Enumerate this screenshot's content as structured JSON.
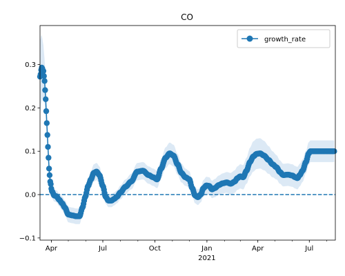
{
  "chart_data": {
    "type": "line",
    "title": "CO",
    "xlabel": "",
    "ylabel": "",
    "x_range": [
      "2020-03-12",
      "2021-08-16"
    ],
    "ylim": [
      -0.105,
      0.39
    ],
    "y_ticks": [
      -0.1,
      0.0,
      0.1,
      0.2,
      0.3
    ],
    "y_tick_labels": [
      "−0.1",
      "0.0",
      "0.1",
      "0.2",
      "0.3"
    ],
    "x_ticks": [
      {
        "date": "2020-04-01",
        "label": "Apr",
        "sub": ""
      },
      {
        "date": "2020-07-01",
        "label": "Jul",
        "sub": ""
      },
      {
        "date": "2020-10-01",
        "label": "Oct",
        "sub": ""
      },
      {
        "date": "2021-01-01",
        "label": "Jan",
        "sub": "2021"
      },
      {
        "date": "2021-04-01",
        "label": "Apr",
        "sub": ""
      },
      {
        "date": "2021-07-01",
        "label": "Jul",
        "sub": ""
      }
    ],
    "reference_line": {
      "y": 0.0,
      "style": "dashed"
    },
    "legend": {
      "position": "top-right"
    },
    "series": [
      {
        "name": "growth_rate",
        "color": "#1f77b4",
        "band_color": "#dce9f5",
        "marker": "circle",
        "points": [
          [
            "2020-03-12",
            0.272,
            0.085
          ],
          [
            "2020-03-15",
            0.293,
            0.075
          ],
          [
            "2020-03-18",
            0.285,
            0.06
          ],
          [
            "2020-03-20",
            0.262,
            0.05
          ],
          [
            "2020-03-22",
            0.22,
            0.04
          ],
          [
            "2020-03-24",
            0.165,
            0.035
          ],
          [
            "2020-03-26",
            0.11,
            0.03
          ],
          [
            "2020-03-28",
            0.06,
            0.025
          ],
          [
            "2020-03-30",
            0.03,
            0.02
          ],
          [
            "2020-04-02",
            0.008,
            0.016
          ],
          [
            "2020-04-06",
            -0.002,
            0.014
          ],
          [
            "2020-04-10",
            -0.004,
            0.014
          ],
          [
            "2020-04-15",
            -0.012,
            0.015
          ],
          [
            "2020-04-20",
            -0.02,
            0.016
          ],
          [
            "2020-04-25",
            -0.03,
            0.017
          ],
          [
            "2020-05-01",
            -0.046,
            0.018
          ],
          [
            "2020-05-08",
            -0.048,
            0.018
          ],
          [
            "2020-05-15",
            -0.05,
            0.018
          ],
          [
            "2020-05-21",
            -0.05,
            0.018
          ],
          [
            "2020-05-26",
            -0.03,
            0.018
          ],
          [
            "2020-05-31",
            -0.005,
            0.018
          ],
          [
            "2020-06-05",
            0.02,
            0.018
          ],
          [
            "2020-06-10",
            0.035,
            0.019
          ],
          [
            "2020-06-15",
            0.05,
            0.02
          ],
          [
            "2020-06-20",
            0.053,
            0.02
          ],
          [
            "2020-06-25",
            0.045,
            0.02
          ],
          [
            "2020-07-01",
            0.02,
            0.018
          ],
          [
            "2020-07-06",
            -0.005,
            0.016
          ],
          [
            "2020-07-11",
            -0.014,
            0.015
          ],
          [
            "2020-07-16",
            -0.014,
            0.015
          ],
          [
            "2020-07-21",
            -0.01,
            0.015
          ],
          [
            "2020-07-26",
            -0.005,
            0.015
          ],
          [
            "2020-08-01",
            0.005,
            0.016
          ],
          [
            "2020-08-10",
            0.018,
            0.017
          ],
          [
            "2020-08-20",
            0.03,
            0.018
          ],
          [
            "2020-08-31",
            0.053,
            0.02
          ],
          [
            "2020-09-10",
            0.055,
            0.02
          ],
          [
            "2020-09-20",
            0.045,
            0.02
          ],
          [
            "2020-09-28",
            0.04,
            0.02
          ],
          [
            "2020-10-05",
            0.035,
            0.02
          ],
          [
            "2020-10-12",
            0.06,
            0.022
          ],
          [
            "2020-10-20",
            0.085,
            0.024
          ],
          [
            "2020-10-27",
            0.095,
            0.025
          ],
          [
            "2020-11-03",
            0.09,
            0.025
          ],
          [
            "2020-11-10",
            0.07,
            0.024
          ],
          [
            "2020-11-17",
            0.05,
            0.022
          ],
          [
            "2020-11-24",
            0.04,
            0.02
          ],
          [
            "2020-12-01",
            0.035,
            0.019
          ],
          [
            "2020-12-06",
            0.015,
            0.018
          ],
          [
            "2020-12-11",
            -0.002,
            0.018
          ],
          [
            "2020-12-16",
            -0.006,
            0.018
          ],
          [
            "2020-12-21",
            0.0,
            0.018
          ],
          [
            "2020-12-26",
            0.015,
            0.019
          ],
          [
            "2020-12-31",
            0.021,
            0.02
          ],
          [
            "2021-01-05",
            0.02,
            0.02
          ],
          [
            "2021-01-10",
            0.012,
            0.02
          ],
          [
            "2021-01-15",
            0.015,
            0.021
          ],
          [
            "2021-01-22",
            0.022,
            0.022
          ],
          [
            "2021-01-29",
            0.026,
            0.023
          ],
          [
            "2021-02-05",
            0.028,
            0.024
          ],
          [
            "2021-02-12",
            0.025,
            0.025
          ],
          [
            "2021-02-19",
            0.03,
            0.026
          ],
          [
            "2021-02-24",
            0.038,
            0.027
          ],
          [
            "2021-03-01",
            0.042,
            0.028
          ],
          [
            "2021-03-06",
            0.04,
            0.028
          ],
          [
            "2021-03-12",
            0.055,
            0.03
          ],
          [
            "2021-03-18",
            0.075,
            0.033
          ],
          [
            "2021-03-24",
            0.088,
            0.035
          ],
          [
            "2021-03-30",
            0.094,
            0.035
          ],
          [
            "2021-04-05",
            0.095,
            0.035
          ],
          [
            "2021-04-12",
            0.09,
            0.034
          ],
          [
            "2021-04-20",
            0.08,
            0.032
          ],
          [
            "2021-04-27",
            0.07,
            0.03
          ],
          [
            "2021-05-04",
            0.063,
            0.028
          ],
          [
            "2021-05-10",
            0.052,
            0.027
          ],
          [
            "2021-05-16",
            0.045,
            0.026
          ],
          [
            "2021-05-24",
            0.046,
            0.026
          ],
          [
            "2021-06-01",
            0.044,
            0.026
          ],
          [
            "2021-06-06",
            0.04,
            0.026
          ],
          [
            "2021-06-10",
            0.038,
            0.026
          ],
          [
            "2021-06-14",
            0.045,
            0.026
          ],
          [
            "2021-06-19",
            0.055,
            0.026
          ],
          [
            "2021-06-25",
            0.075,
            0.026
          ],
          [
            "2021-06-30",
            0.095,
            0.026
          ],
          [
            "2021-07-03",
            0.1,
            0.025
          ],
          [
            "2021-07-15",
            0.1,
            0.025
          ],
          [
            "2021-07-30",
            0.1,
            0.025
          ],
          [
            "2021-08-14",
            0.1,
            0.025
          ]
        ]
      }
    ]
  }
}
